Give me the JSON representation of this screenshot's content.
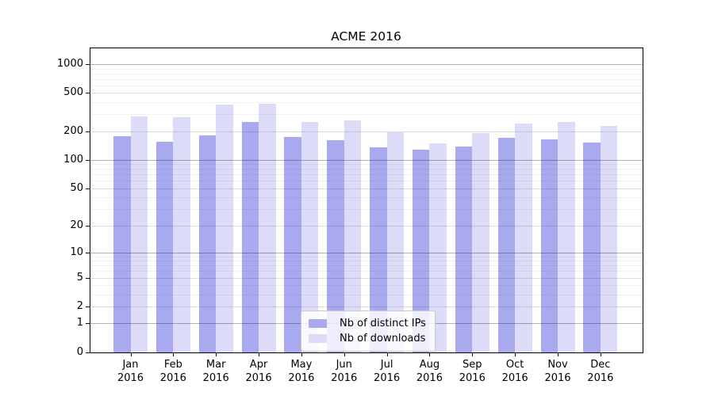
{
  "title": "ACME 2016",
  "chart_data": {
    "type": "bar",
    "title": "ACME 2016",
    "categories": [
      "Jan 2016",
      "Feb 2016",
      "Mar 2016",
      "Apr 2016",
      "May 2016",
      "Jun 2016",
      "Jul 2016",
      "Aug 2016",
      "Sep 2016",
      "Oct 2016",
      "Nov 2016",
      "Dec 2016"
    ],
    "month_labels": [
      "Jan",
      "Feb",
      "Mar",
      "Apr",
      "May",
      "Jun",
      "Jul",
      "Aug",
      "Sep",
      "Oct",
      "Nov",
      "Dec"
    ],
    "year_label": "2016",
    "series": [
      {
        "name": "Nb of distinct IPs",
        "color": "#a9a9f0",
        "values": [
          177,
          155,
          181,
          248,
          174,
          162,
          135,
          129,
          139,
          171,
          165,
          151
        ]
      },
      {
        "name": "Nb of downloads",
        "color": "#dcdcf8",
        "values": [
          285,
          280,
          377,
          383,
          250,
          260,
          196,
          150,
          192,
          241,
          250,
          228
        ]
      }
    ],
    "xlabel": "",
    "ylabel": "",
    "yscale": "symlog",
    "yticks": [
      0,
      1,
      2,
      5,
      10,
      20,
      50,
      100,
      200,
      500,
      1000
    ],
    "ylim": [
      0,
      1490
    ],
    "grid": true,
    "legend_position": "lower center"
  },
  "legend": {
    "items": [
      {
        "label": "Nb of distinct IPs"
      },
      {
        "label": "Nb of downloads"
      }
    ]
  },
  "colors": {
    "bar_distinct_ips": "#a9a9f0",
    "bar_downloads": "#dcdcf8",
    "spine": "#000000",
    "grid_major": "rgba(0,0,0,0.30)",
    "grid_mid": "rgba(0,0,0,0.13)",
    "grid_minor": "rgba(0,0,0,0.055)",
    "legend_border": "#c9c9c9",
    "legend_background": "rgba(255,255,255,0.8)"
  }
}
